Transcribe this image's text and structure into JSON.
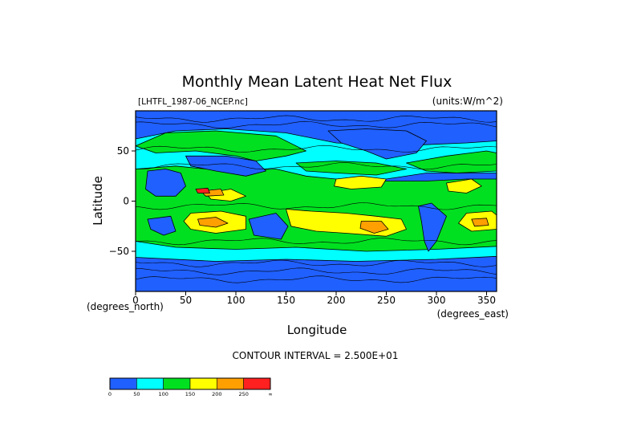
{
  "chart_data": {
    "type": "heatmap",
    "title": "Monthly Mean Latent Heat Net Flux",
    "file_label": "[LHTFL_1987-06_NCEP.nc]",
    "units_label": "(units:W/m^2)",
    "xlabel": "Longitude",
    "ylabel": "Latitude",
    "x_units": "(degrees_east)",
    "y_units": "(degrees_north)",
    "xlim": [
      0,
      360
    ],
    "ylim": [
      -90,
      90
    ],
    "x_ticks": [
      "0",
      "50",
      "100",
      "150",
      "200",
      "250",
      "300",
      "350"
    ],
    "x_tick_values": [
      0,
      50,
      100,
      150,
      200,
      250,
      300,
      350
    ],
    "y_ticks": [
      "50",
      "0",
      "−50"
    ],
    "y_tick_values": [
      50,
      0,
      -50
    ],
    "contour_interval_text": "CONTOUR INTERVAL = 2.500E+01",
    "colorbar": {
      "bins": [
        {
          "from": "0",
          "color": "#2060ff"
        },
        {
          "from": "50",
          "color": "#00ffff"
        },
        {
          "from": "100",
          "color": "#00e020"
        },
        {
          "from": "150",
          "color": "#ffff00"
        },
        {
          "from": "200",
          "color": "#ffa000"
        },
        {
          "from": "250",
          "color": "#ff2020"
        }
      ],
      "labels": [
        "0",
        "50",
        "100",
        "150",
        "200",
        "250",
        "∞"
      ]
    }
  }
}
